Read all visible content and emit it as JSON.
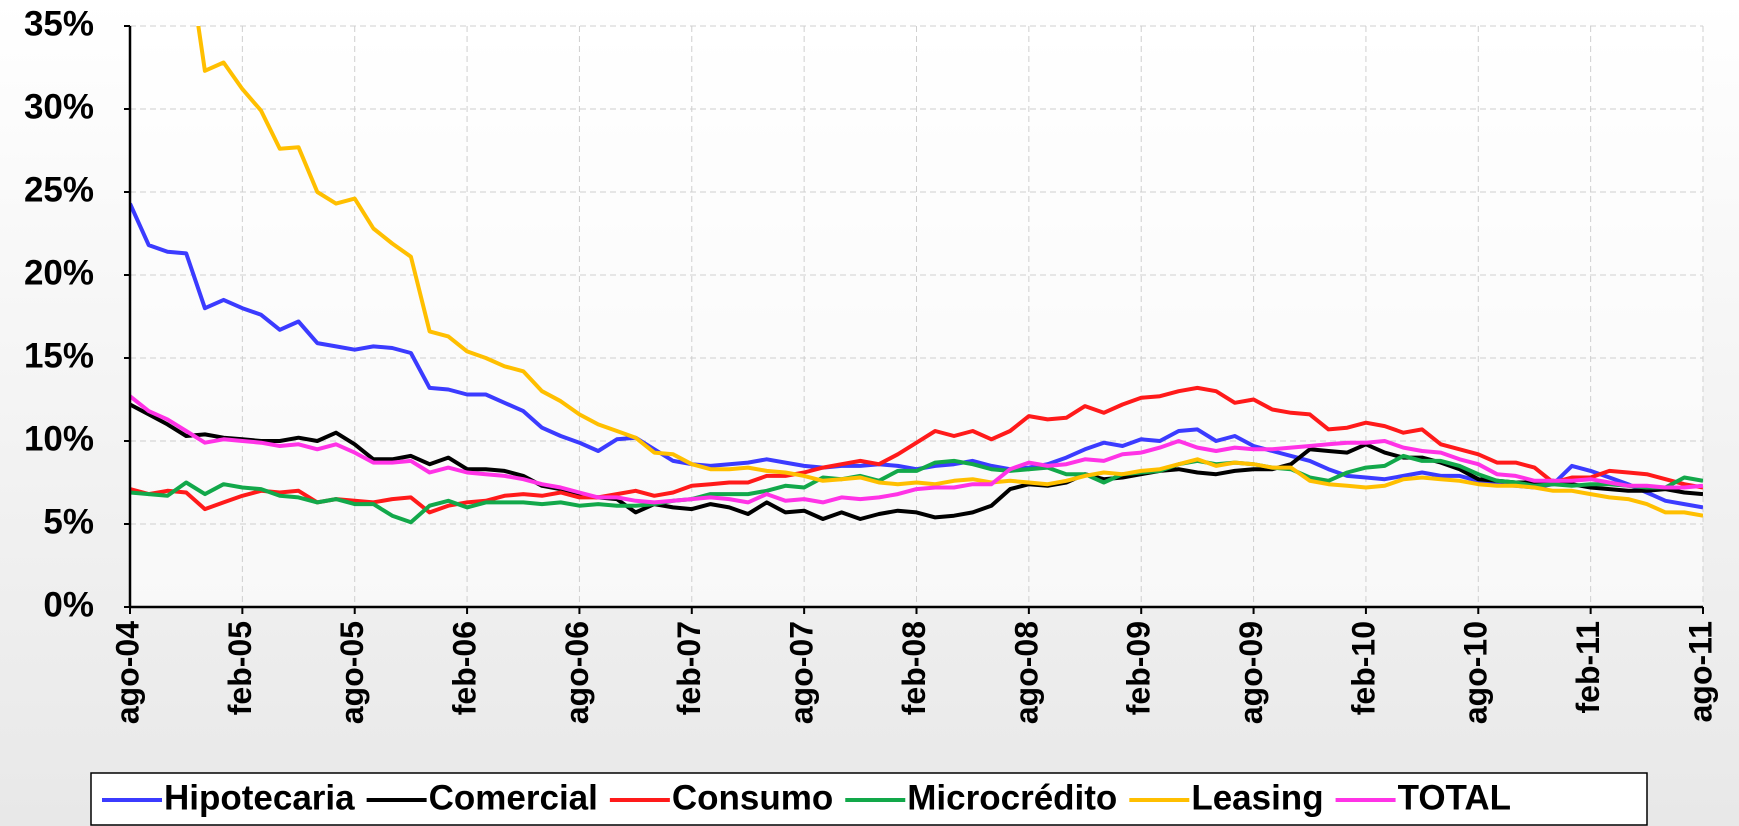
{
  "chart_data": {
    "type": "line",
    "categories": [
      "ago-04",
      null,
      null,
      null,
      null,
      null,
      "feb-05",
      null,
      null,
      null,
      null,
      null,
      "ago-05",
      null,
      null,
      null,
      null,
      null,
      "feb-06",
      null,
      null,
      null,
      null,
      null,
      "ago-06",
      null,
      null,
      null,
      null,
      null,
      "feb-07",
      null,
      null,
      null,
      null,
      null,
      "ago-07",
      null,
      null,
      null,
      null,
      null,
      "feb-08",
      null,
      null,
      null,
      null,
      null,
      "ago-08",
      null,
      null,
      null,
      null,
      null,
      "feb-09",
      null,
      null,
      null,
      null,
      null,
      "ago-09",
      null,
      null,
      null,
      null,
      null,
      "feb-10",
      null,
      null,
      null,
      null,
      null,
      "ago-10",
      null,
      null,
      null,
      null,
      null,
      "feb-11",
      null,
      null,
      null,
      null,
      null,
      "ago-11"
    ],
    "ylim": [
      0,
      35
    ],
    "yticks": [
      {
        "value": 0,
        "label": "0%"
      },
      {
        "value": 5,
        "label": "5%"
      },
      {
        "value": 10,
        "label": "10%"
      },
      {
        "value": 15,
        "label": "15%"
      },
      {
        "value": 20,
        "label": "20%"
      },
      {
        "value": 25,
        "label": "25%"
      },
      {
        "value": 30,
        "label": "30%"
      },
      {
        "value": 35,
        "label": "35%"
      }
    ],
    "grid": true,
    "series": [
      {
        "name": "Hipotecaria",
        "color": "#3b3bff",
        "values": [
          24.3,
          21.8,
          21.4,
          21.3,
          18.0,
          18.5,
          18.0,
          17.6,
          16.7,
          17.2,
          15.9,
          15.7,
          15.5,
          15.7,
          15.6,
          15.3,
          13.2,
          13.1,
          12.8,
          12.8,
          12.3,
          11.8,
          10.8,
          10.3,
          9.9,
          9.4,
          10.1,
          10.2,
          9.5,
          8.8,
          8.6,
          8.5,
          8.6,
          8.7,
          8.9,
          8.7,
          8.5,
          8.4,
          8.5,
          8.5,
          8.6,
          8.5,
          8.3,
          8.5,
          8.6,
          8.8,
          8.5,
          8.3,
          8.4,
          8.6,
          9.0,
          9.5,
          9.9,
          9.7,
          10.1,
          10.0,
          10.6,
          10.7,
          10.0,
          10.3,
          9.7,
          9.4,
          9.1,
          8.8,
          8.3,
          7.9,
          7.8,
          7.7,
          7.9,
          8.1,
          7.9,
          7.9,
          7.6,
          7.4,
          7.3,
          7.2,
          7.4,
          8.5,
          8.2,
          7.8,
          7.4,
          6.9,
          6.4,
          6.2,
          6.0
        ]
      },
      {
        "name": "Comercial",
        "color": "#000000",
        "values": [
          12.2,
          11.6,
          11.0,
          10.3,
          10.4,
          10.2,
          10.1,
          10.0,
          10.0,
          10.2,
          10.0,
          10.5,
          9.8,
          8.9,
          8.9,
          9.1,
          8.6,
          9.0,
          8.3,
          8.3,
          8.2,
          7.9,
          7.3,
          7.1,
          6.7,
          6.6,
          6.5,
          5.7,
          6.2,
          6.0,
          5.9,
          6.2,
          6.0,
          5.6,
          6.3,
          5.7,
          5.8,
          5.3,
          5.7,
          5.3,
          5.6,
          5.8,
          5.7,
          5.4,
          5.5,
          5.7,
          6.1,
          7.1,
          7.4,
          7.3,
          7.5,
          8.0,
          7.7,
          7.8,
          8.0,
          8.2,
          8.3,
          8.1,
          8.0,
          8.2,
          8.3,
          8.3,
          8.6,
          9.5,
          9.4,
          9.3,
          9.8,
          9.3,
          9.0,
          9.0,
          8.7,
          8.3,
          7.7,
          7.6,
          7.5,
          7.5,
          7.6,
          7.4,
          7.2,
          7.1,
          7.0,
          7.0,
          7.1,
          6.9,
          6.8
        ]
      },
      {
        "name": "Consumo",
        "color": "#ff1a1a",
        "values": [
          7.1,
          6.8,
          7.0,
          6.9,
          5.9,
          6.3,
          6.7,
          7.0,
          6.9,
          7.0,
          6.3,
          6.5,
          6.4,
          6.3,
          6.5,
          6.6,
          5.7,
          6.1,
          6.3,
          6.4,
          6.7,
          6.8,
          6.7,
          6.9,
          6.6,
          6.6,
          6.8,
          7.0,
          6.7,
          6.9,
          7.3,
          7.4,
          7.5,
          7.5,
          7.9,
          7.9,
          8.1,
          8.4,
          8.6,
          8.8,
          8.6,
          9.2,
          9.9,
          10.6,
          10.3,
          10.6,
          10.1,
          10.6,
          11.5,
          11.3,
          11.4,
          12.1,
          11.7,
          12.2,
          12.6,
          12.7,
          13.0,
          13.2,
          13.0,
          12.3,
          12.5,
          11.9,
          11.7,
          11.6,
          10.7,
          10.8,
          11.1,
          10.9,
          10.5,
          10.7,
          9.8,
          9.5,
          9.2,
          8.7,
          8.7,
          8.4,
          7.5,
          7.8,
          7.8,
          8.2,
          8.1,
          8.0,
          7.7,
          7.4,
          7.2
        ]
      },
      {
        "name": "Microcrédito",
        "color": "#12a84a",
        "values": [
          6.9,
          6.8,
          6.7,
          7.5,
          6.8,
          7.4,
          7.2,
          7.1,
          6.7,
          6.6,
          6.3,
          6.5,
          6.2,
          6.2,
          5.5,
          5.1,
          6.1,
          6.4,
          6.0,
          6.3,
          6.3,
          6.3,
          6.2,
          6.3,
          6.1,
          6.2,
          6.1,
          6.1,
          6.2,
          6.4,
          6.5,
          6.8,
          6.8,
          6.8,
          7.0,
          7.3,
          7.2,
          7.8,
          7.7,
          7.9,
          7.6,
          8.2,
          8.2,
          8.7,
          8.8,
          8.6,
          8.3,
          8.2,
          8.3,
          8.4,
          8.0,
          8.0,
          7.5,
          8.0,
          8.1,
          8.2,
          8.6,
          8.8,
          8.6,
          8.7,
          8.6,
          8.4,
          8.3,
          7.8,
          7.6,
          8.1,
          8.4,
          8.5,
          9.1,
          8.8,
          8.8,
          8.5,
          8.0,
          7.6,
          7.5,
          7.3,
          7.4,
          7.3,
          7.4,
          7.4,
          7.3,
          7.2,
          7.2,
          7.8,
          7.6
        ]
      },
      {
        "name": "Leasing",
        "color": "#ffbf00",
        "values": [
          null,
          null,
          null,
          40,
          32.3,
          32.8,
          31.2,
          29.9,
          27.6,
          27.7,
          25.0,
          24.3,
          24.6,
          22.8,
          21.9,
          21.1,
          16.6,
          16.3,
          15.4,
          15.0,
          14.5,
          14.2,
          13.0,
          12.4,
          11.6,
          11.0,
          10.6,
          10.2,
          9.3,
          9.2,
          8.6,
          8.3,
          8.3,
          8.4,
          8.2,
          8.1,
          7.9,
          7.6,
          7.7,
          7.8,
          7.5,
          7.4,
          7.5,
          7.4,
          7.6,
          7.7,
          7.5,
          7.6,
          7.5,
          7.4,
          7.6,
          7.9,
          8.1,
          8.0,
          8.2,
          8.3,
          8.6,
          8.9,
          8.5,
          8.7,
          8.6,
          8.4,
          8.4,
          7.6,
          7.4,
          7.3,
          7.2,
          7.3,
          7.7,
          7.8,
          7.7,
          7.6,
          7.4,
          7.3,
          7.3,
          7.2,
          7.0,
          7.0,
          6.8,
          6.6,
          6.5,
          6.2,
          5.7,
          5.7,
          5.5
        ]
      },
      {
        "name": "TOTAL",
        "color": "#ff33e6",
        "values": [
          12.7,
          11.8,
          11.3,
          10.6,
          9.9,
          10.1,
          10.0,
          9.9,
          9.7,
          9.8,
          9.5,
          9.8,
          9.3,
          8.7,
          8.7,
          8.8,
          8.1,
          8.4,
          8.1,
          8.0,
          7.9,
          7.7,
          7.4,
          7.2,
          6.9,
          6.6,
          6.6,
          6.4,
          6.3,
          6.4,
          6.5,
          6.6,
          6.5,
          6.3,
          6.8,
          6.4,
          6.5,
          6.3,
          6.6,
          6.5,
          6.6,
          6.8,
          7.1,
          7.2,
          7.2,
          7.4,
          7.4,
          8.3,
          8.7,
          8.5,
          8.6,
          8.9,
          8.8,
          9.2,
          9.3,
          9.6,
          10.0,
          9.6,
          9.4,
          9.6,
          9.5,
          9.5,
          9.6,
          9.7,
          9.8,
          9.9,
          9.9,
          10.0,
          9.6,
          9.4,
          9.3,
          8.9,
          8.6,
          8.0,
          7.9,
          7.6,
          7.6,
          7.6,
          7.7,
          7.5,
          7.3,
          7.3,
          7.2,
          7.2,
          7.3
        ]
      }
    ]
  }
}
